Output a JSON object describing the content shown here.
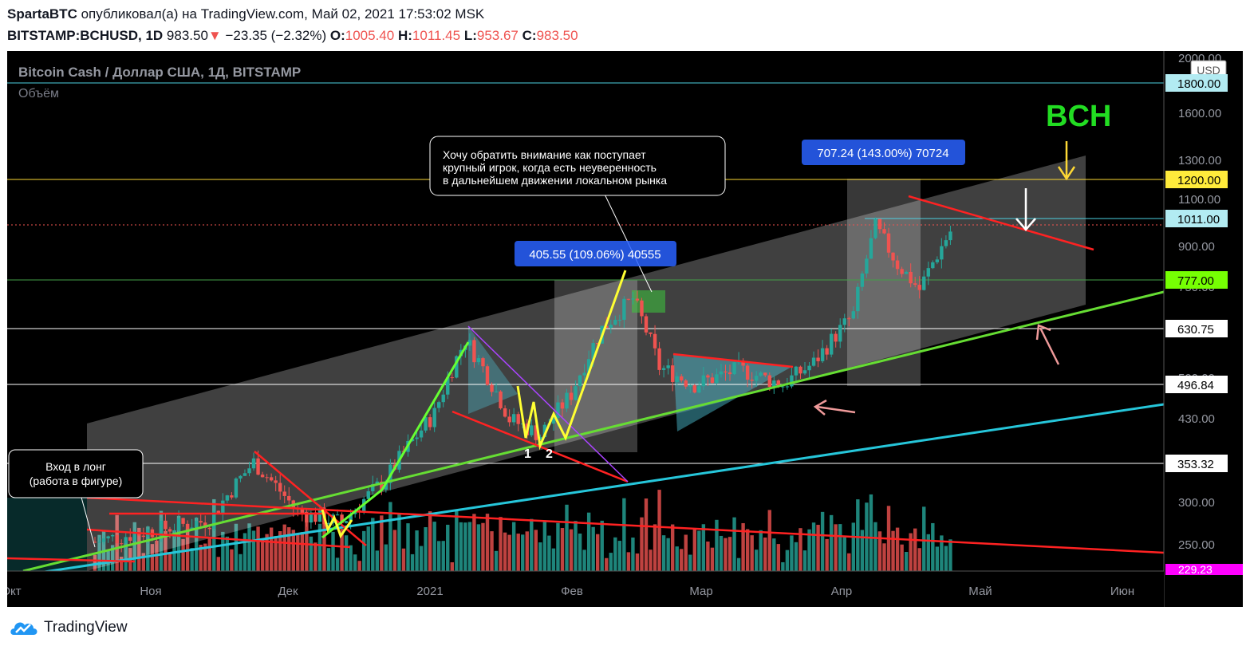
{
  "header": {
    "publisher": "SpartaBTC",
    "published_text": "опубликовал(а) на TradingView.com, Май 02, 2021 17:53:02 MSK",
    "symbol": "BITSTAMP:BCHUSD, 1D",
    "last": "983.50",
    "change_arrow": "▼",
    "change": "−23.35 (−2.32%)",
    "o_label": "O:",
    "o_value": "1005.40",
    "h_label": "H:",
    "h_value": "1011.45",
    "l_label": "L:",
    "l_value": "953.67",
    "c_label": "C:",
    "c_value": "983.50"
  },
  "chart": {
    "instrument": "Bitcoin Cash / Доллар США, 1Д, BITSTAMP",
    "volume_label": "Объём",
    "currency": "USD",
    "big_label": "BCH",
    "note_entry_line1": "Вход в лонг",
    "note_entry_line2": "(работа в фигуре)",
    "note_player_line1": "Хочу обратить внимание как поступает",
    "note_player_line2": "крупный игрок, когда есть неуверенность",
    "note_player_line3": "в дальнейшем движении локальном рынка",
    "measure1": "405.55 (109.06%) 40555",
    "measure2": "707.24 (143.00%) 70724",
    "marker_1": "1",
    "marker_2": "2"
  },
  "price_axis": {
    "ticks": [
      "2000.00",
      "1600.00",
      "1300.00",
      "1100.00",
      "900.00",
      "430.00",
      "300.00",
      "250.00"
    ],
    "labels": [
      {
        "text": "1800.00",
        "bg": "#b2ebf2"
      },
      {
        "text": "1200.00",
        "bg": "#ffeb3b"
      },
      {
        "text": "1011.00",
        "bg": "#b2ebf2"
      },
      {
        "text": "777.00",
        "bg": "#76ff03"
      },
      {
        "text": "630.75",
        "bg": "#ffffff"
      },
      {
        "text": "496.84",
        "bg": "#ffffff"
      },
      {
        "text": "353.32",
        "bg": "#ffffff"
      }
    ],
    "partial_tick_1": "750.00",
    "partial_tick_2": "500.00",
    "partial_bottom": "229.23"
  },
  "time_axis": {
    "ticks": [
      "Окт",
      "Ноя",
      "Дек",
      "2021",
      "Фев",
      "Мар",
      "Апр",
      "Май",
      "Июн"
    ]
  },
  "footer": {
    "brand": "TradingView"
  },
  "chart_data": {
    "type": "candlestick",
    "title": "Bitcoin Cash / Доллар США, 1Д, BITSTAMP",
    "y_scale": "log",
    "ylim": [
      220,
      2100
    ],
    "x_range": [
      "2020-10-01",
      "2021-06-10"
    ],
    "levels": [
      1800,
      1200,
      1011,
      777,
      630.75,
      496.84,
      353.32
    ],
    "price_path": [
      {
        "date": "2020-10-20",
        "close": 250
      },
      {
        "date": "2020-11-01",
        "close": 262
      },
      {
        "date": "2020-11-15",
        "close": 275
      },
      {
        "date": "2020-11-25",
        "close": 355
      },
      {
        "date": "2020-12-05",
        "close": 285
      },
      {
        "date": "2020-12-15",
        "close": 272
      },
      {
        "date": "2020-12-25",
        "close": 330
      },
      {
        "date": "2021-01-05",
        "close": 440
      },
      {
        "date": "2021-01-12",
        "close": 610
      },
      {
        "date": "2021-01-22",
        "close": 430
      },
      {
        "date": "2021-01-29",
        "close": 400
      },
      {
        "date": "2021-02-05",
        "close": 480
      },
      {
        "date": "2021-02-12",
        "close": 640
      },
      {
        "date": "2021-02-19",
        "close": 730
      },
      {
        "date": "2021-02-25",
        "close": 540
      },
      {
        "date": "2021-03-05",
        "close": 500
      },
      {
        "date": "2021-03-15",
        "close": 535
      },
      {
        "date": "2021-03-25",
        "close": 500
      },
      {
        "date": "2021-04-01",
        "close": 550
      },
      {
        "date": "2021-04-10",
        "close": 680
      },
      {
        "date": "2021-04-15",
        "close": 1000
      },
      {
        "date": "2021-04-20",
        "close": 850
      },
      {
        "date": "2021-04-25",
        "close": 760
      },
      {
        "date": "2021-05-02",
        "close": 983.5
      }
    ]
  }
}
